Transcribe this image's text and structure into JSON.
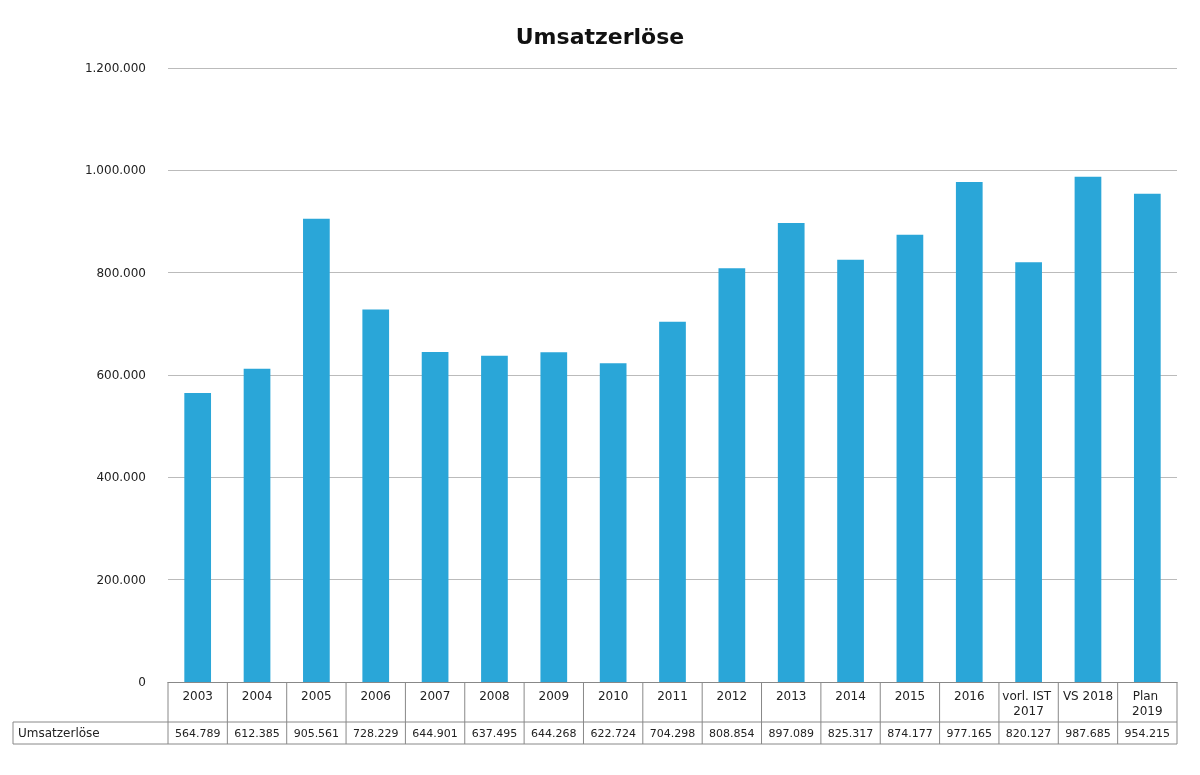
{
  "chart_data": {
    "type": "bar",
    "title": "Umsatzerlöse",
    "categories": [
      "2003",
      "2004",
      "2005",
      "2006",
      "2007",
      "2008",
      "2009",
      "2010",
      "2011",
      "2012",
      "2013",
      "2014",
      "2015",
      "2016",
      "vorl. IST 2017",
      "VS 2018",
      "Plan 2019"
    ],
    "series": [
      {
        "name": "Umsatzerlöse",
        "color": "#2aa6d8",
        "values": [
          564789,
          612385,
          905561,
          728229,
          644901,
          637495,
          644268,
          622724,
          704298,
          808854,
          897089,
          825317,
          874177,
          977165,
          820127,
          987685,
          954215
        ],
        "value_labels": [
          "564.789",
          "612.385",
          "905.561",
          "728.229",
          "644.901",
          "637.495",
          "644.268",
          "622.724",
          "704.298",
          "808.854",
          "897.089",
          "825.317",
          "874.177",
          "977.165",
          "820.127",
          "987.685",
          "954.215"
        ]
      }
    ],
    "ylim": [
      0,
      1200000
    ],
    "yticks": [
      {
        "value": 0,
        "label": "0"
      },
      {
        "value": 200000,
        "label": "200.000"
      },
      {
        "value": 400000,
        "label": "400.000"
      },
      {
        "value": 600000,
        "label": "600.000"
      },
      {
        "value": 800000,
        "label": "800.000"
      },
      {
        "value": 1000000,
        "label": "1.000.000"
      },
      {
        "value": 1200000,
        "label": "1.200.000"
      }
    ],
    "grid": true
  }
}
